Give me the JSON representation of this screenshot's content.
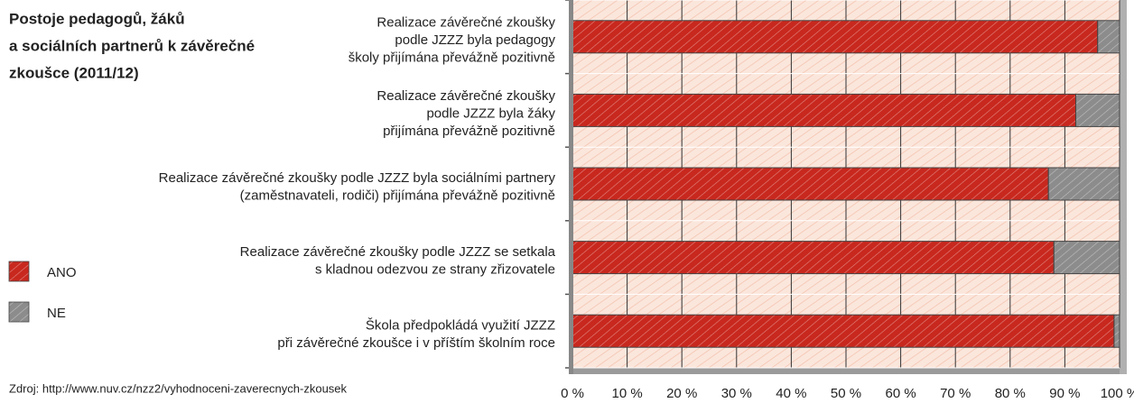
{
  "chart_data": {
    "type": "stacked-bar-horizontal",
    "title": [
      "Postoje pedagogů, žáků",
      "a sociálních partnerů k závěrečné",
      "zkoušce (2011/12)"
    ],
    "categories": [
      [
        "Realizace závěrečné zkoušky",
        "podle JZZZ byla pedagogy",
        "školy přijímána převážně pozitivně"
      ],
      [
        "Realizace závěrečné zkoušky",
        "podle JZZZ byla žáky",
        "přijímána převážně pozitivně"
      ],
      [
        "Realizace závěrečné zkoušky podle JZZZ byla sociálními partnery",
        "(zaměstnavateli, rodiči) přijímána převážně pozitivně"
      ],
      [
        "Realizace závěrečné zkoušky podle JZZZ se setkala",
        "s kladnou odezvou ze strany zřizovatele"
      ],
      [
        "Škola předpokládá využití JZZZ",
        "při závěrečné zkoušce i v příštím školním roce"
      ]
    ],
    "series": [
      {
        "name": "ANO",
        "color": "#c8281e",
        "values": [
          96,
          92,
          87,
          88,
          99
        ]
      },
      {
        "name": "NE",
        "color": "#8c8c8c",
        "values": [
          4,
          8,
          13,
          12,
          1
        ]
      }
    ],
    "xlim": [
      0,
      100
    ],
    "xticks": [
      {
        "value": 0,
        "label": "0 %"
      },
      {
        "value": 10,
        "label": "10 %"
      },
      {
        "value": 20,
        "label": "20 %"
      },
      {
        "value": 30,
        "label": "30 %"
      },
      {
        "value": 40,
        "label": "40 %"
      },
      {
        "value": 50,
        "label": "50 %"
      },
      {
        "value": 60,
        "label": "60 %"
      },
      {
        "value": 70,
        "label": "70 %"
      },
      {
        "value": 80,
        "label": "80 %"
      },
      {
        "value": 90,
        "label": "90 %"
      },
      {
        "value": 100,
        "label": "100 %"
      }
    ],
    "grid": true,
    "source": "Zdroj: http://www.nuv.cz/nzz2/vyhodnoceni-zaverecnych-zkousek"
  }
}
